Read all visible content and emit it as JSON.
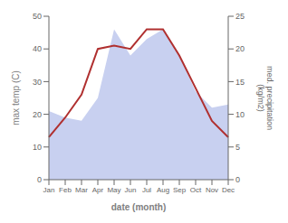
{
  "chart_data": {
    "type": "line",
    "categories": [
      "Jan",
      "Feb",
      "Mar",
      "Apr",
      "May",
      "Jun",
      "Jul",
      "Aug",
      "Sep",
      "Oct",
      "Nov",
      "Dec"
    ],
    "series": [
      {
        "type": "area",
        "color": "#c8d0f0",
        "axis": "y2",
        "values": [
          10.5,
          9.5,
          9.0,
          12.5,
          23.0,
          19.0,
          21.5,
          23.0,
          19.0,
          13.5,
          11.0,
          11.5
        ]
      },
      {
        "type": "line",
        "color": "#b03030",
        "axis": "y",
        "values": [
          13,
          19,
          26,
          40,
          41,
          40,
          46,
          46,
          38,
          28,
          18,
          13
        ]
      }
    ],
    "xlabel": "date (month)",
    "ylabel": "max temp (C)",
    "y2label": "med. precipitation\n(kg/m2)",
    "ylim": [
      0,
      50
    ],
    "yticks": [
      0,
      10,
      20,
      30,
      40,
      50
    ],
    "y2lim": [
      0,
      25
    ],
    "y2ticks": [
      0,
      5,
      10,
      15,
      20,
      25
    ],
    "grid": false
  }
}
